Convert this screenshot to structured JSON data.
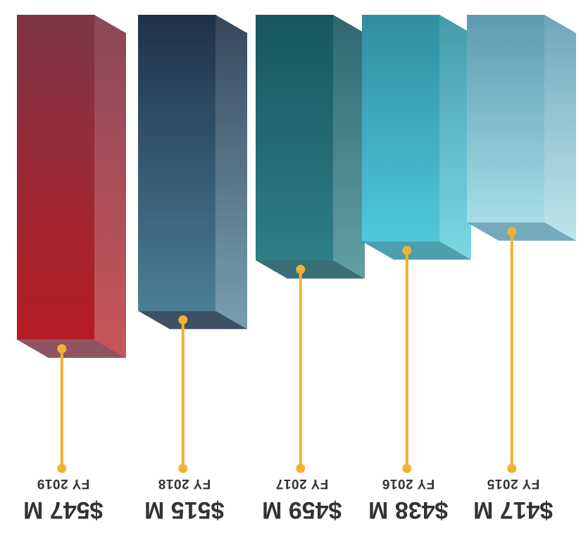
{
  "chart_data": {
    "type": "bar",
    "style": "3d-columns-with-callout-pins",
    "orientation": "rendered-rotated-180-degrees",
    "categories": [
      "FY 2015",
      "FY 2016",
      "FY 2017",
      "FY 2018",
      "FY 2019"
    ],
    "series": [
      {
        "values": [
          417,
          438,
          459,
          515,
          547
        ]
      }
    ],
    "value_labels": [
      "$417 M",
      "$438 M",
      "$459 M",
      "$515 M",
      "$547 M"
    ],
    "unit": "$ M",
    "ylim": [
      0,
      560
    ],
    "grid": false,
    "legend": "none",
    "colors": {
      "FY 2015": [
        "#a6dde6",
        "#5d9bb0"
      ],
      "FY 2016": [
        "#4fc8dc",
        "#2f8ea0"
      ],
      "FY 2017": [
        "#2e7f86",
        "#17565f"
      ],
      "FY 2018": [
        "#4a7f95",
        "#1f3149"
      ],
      "FY 2019": [
        "#b71c24",
        "#7c3545"
      ],
      "pin": "#f2b134",
      "label": "#333333"
    }
  }
}
